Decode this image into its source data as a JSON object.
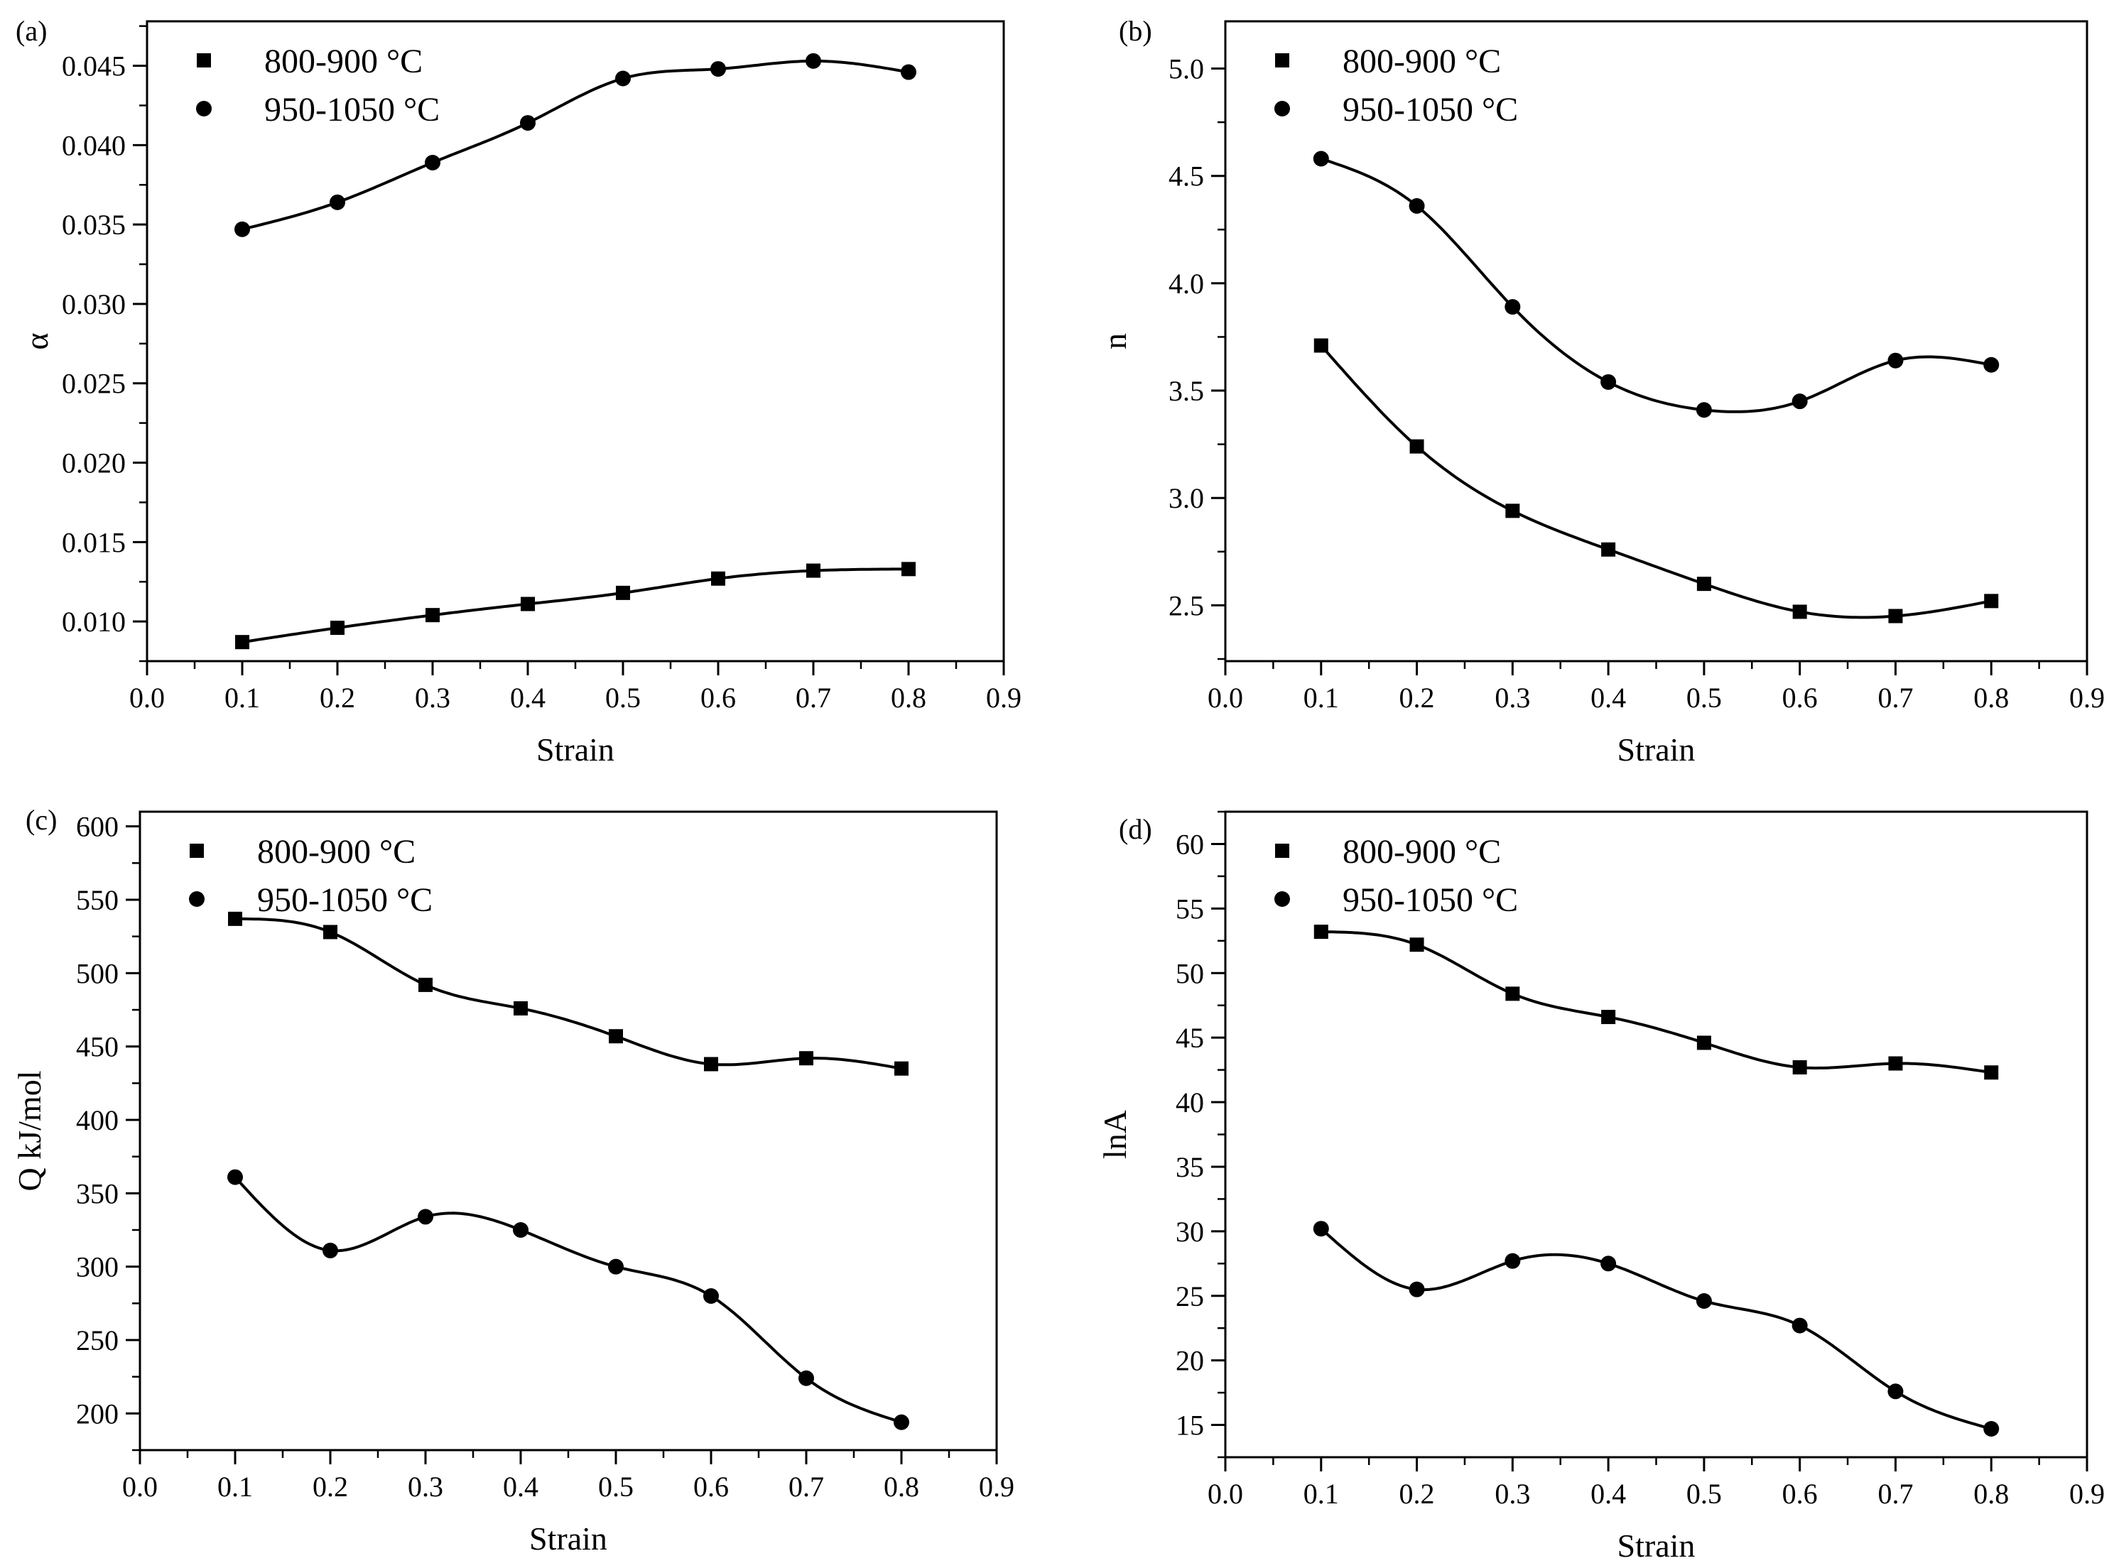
{
  "chart_data": [
    {
      "panel_label": "(a)",
      "type": "scatter",
      "xlabel": "Strain",
      "ylabel": "α",
      "xlim": [
        0.0,
        0.9
      ],
      "ylim": [
        0.0075,
        0.0478
      ],
      "x_ticks": [
        "0.0",
        "0.1",
        "0.2",
        "0.3",
        "0.4",
        "0.5",
        "0.6",
        "0.7",
        "0.8",
        "0.9"
      ],
      "y_ticks": [
        "0.010",
        "0.015",
        "0.020",
        "0.025",
        "0.030",
        "0.035",
        "0.040",
        "0.045"
      ],
      "x": [
        0.1,
        0.2,
        0.3,
        0.4,
        0.5,
        0.6,
        0.7,
        0.8
      ],
      "legend_position": "top-left",
      "series": [
        {
          "name": "800-900 °C",
          "marker": "square",
          "values": [
            0.0087,
            0.0096,
            0.0104,
            0.0111,
            0.0118,
            0.0127,
            0.0132,
            0.0133
          ]
        },
        {
          "name": "950-1050 °C",
          "marker": "circle",
          "values": [
            0.0347,
            0.0364,
            0.0389,
            0.0414,
            0.0442,
            0.0448,
            0.0453,
            0.0446
          ]
        }
      ]
    },
    {
      "panel_label": "(b)",
      "type": "scatter",
      "xlabel": "Strain",
      "ylabel": "n",
      "xlim": [
        0.0,
        0.9
      ],
      "ylim": [
        2.24,
        5.22
      ],
      "x_ticks": [
        "0.0",
        "0.1",
        "0.2",
        "0.3",
        "0.4",
        "0.5",
        "0.6",
        "0.7",
        "0.8",
        "0.9"
      ],
      "y_ticks": [
        "2.5",
        "3.0",
        "3.5",
        "4.0",
        "4.5",
        "5.0"
      ],
      "x": [
        0.1,
        0.2,
        0.3,
        0.4,
        0.5,
        0.6,
        0.7,
        0.8
      ],
      "legend_position": "top-left",
      "series": [
        {
          "name": "800-900 °C",
          "marker": "square",
          "values": [
            3.71,
            3.24,
            2.94,
            2.76,
            2.6,
            2.47,
            2.45,
            2.52
          ]
        },
        {
          "name": "950-1050 °C",
          "marker": "circle",
          "values": [
            4.58,
            4.36,
            3.89,
            3.54,
            3.41,
            3.45,
            3.64,
            3.62
          ]
        }
      ]
    },
    {
      "panel_label": "(c)",
      "type": "scatter",
      "xlabel": "Strain",
      "ylabel": "Q kJ/mol",
      "xlim": [
        0.0,
        0.9
      ],
      "ylim": [
        175,
        610
      ],
      "x_ticks": [
        "0.0",
        "0.1",
        "0.2",
        "0.3",
        "0.4",
        "0.5",
        "0.6",
        "0.7",
        "0.8",
        "0.9"
      ],
      "y_ticks": [
        "200",
        "250",
        "300",
        "350",
        "400",
        "450",
        "500",
        "550",
        "600"
      ],
      "x": [
        0.1,
        0.2,
        0.3,
        0.4,
        0.5,
        0.6,
        0.7,
        0.8
      ],
      "legend_position": "top-left",
      "series": [
        {
          "name": "800-900 °C",
          "marker": "square",
          "values": [
            537,
            528,
            492,
            476,
            457,
            438,
            442,
            435
          ]
        },
        {
          "name": "950-1050 °C",
          "marker": "circle",
          "values": [
            361,
            311,
            334,
            325,
            300,
            280,
            224,
            194
          ]
        }
      ]
    },
    {
      "panel_label": "(d)",
      "type": "scatter",
      "xlabel": "Strain",
      "ylabel": "lnA",
      "xlim": [
        0.0,
        0.9
      ],
      "ylim": [
        12.5,
        62.5
      ],
      "x_ticks": [
        "0.0",
        "0.1",
        "0.2",
        "0.3",
        "0.4",
        "0.5",
        "0.6",
        "0.7",
        "0.8",
        "0.9"
      ],
      "y_ticks": [
        "15",
        "20",
        "25",
        "30",
        "35",
        "40",
        "45",
        "50",
        "55",
        "60"
      ],
      "x": [
        0.1,
        0.2,
        0.3,
        0.4,
        0.5,
        0.6,
        0.7,
        0.8
      ],
      "legend_position": "top-left",
      "series": [
        {
          "name": "800-900 °C",
          "marker": "square",
          "values": [
            53.2,
            52.2,
            48.4,
            46.6,
            44.6,
            42.7,
            43.0,
            42.3
          ]
        },
        {
          "name": "950-1050 °C",
          "marker": "circle",
          "values": [
            30.2,
            25.5,
            27.7,
            27.5,
            24.6,
            22.7,
            17.6,
            14.7
          ]
        }
      ]
    }
  ]
}
